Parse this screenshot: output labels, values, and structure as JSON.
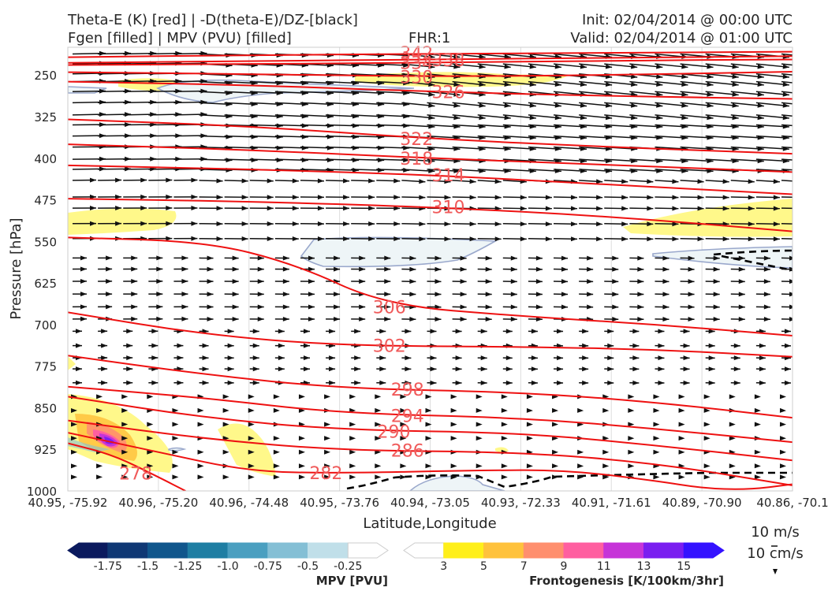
{
  "header": {
    "title_left_1": "Theta-E (K) [red] | -D(theta-E)/DZ-[black]",
    "title_left_2": "Fgen [filled] | MPV (PVU) [filled]",
    "fhr": "FHR:1",
    "init": "Init: 02/04/2014 @ 00:00 UTC",
    "valid": "Valid: 02/04/2014 @ 01:00 UTC"
  },
  "colors": {
    "theta": "#ee1111",
    "theta_label": "#f05a5a",
    "arrows": "#111111",
    "mpv_line": "#9aa8cc",
    "mpv_fill": "#eef5f7",
    "fgen_fill": "#fff88a",
    "dashed": "#000000"
  },
  "chart_data": {
    "type": "cross-section",
    "xlabel": "Latitude,Longitude",
    "ylabel": "Pressure [hPa]",
    "ylim": [
      1000,
      200
    ],
    "xlim": [
      0,
      8
    ],
    "x_tick_labels": [
      "40.95, -75.92",
      "40.96, -75.20",
      "40.96, -74.48",
      "40.95, -73.76",
      "40.94, -73.05",
      "40.93, -72.33",
      "40.91, -71.61",
      "40.89, -70.90",
      "40.86, -70.1"
    ],
    "y_ticks": [
      250,
      325,
      400,
      475,
      550,
      625,
      700,
      775,
      850,
      925,
      1000
    ],
    "theta_e_contours": [
      {
        "label": "342",
        "label_x": 3.85,
        "label_p": 210,
        "points": [
          [
            0,
            218
          ],
          [
            2,
            214
          ],
          [
            4,
            212
          ],
          [
            6,
            210
          ],
          [
            8,
            208
          ]
        ]
      },
      {
        "label": "338",
        "label_x": 4.2,
        "label_p": 223,
        "points": [
          [
            0,
            228
          ],
          [
            2,
            225
          ],
          [
            4,
            222
          ],
          [
            6,
            219
          ],
          [
            8,
            216
          ]
        ]
      },
      {
        "label": "334",
        "label_x": 3.85,
        "label_p": 228,
        "points": [
          [
            0,
            232
          ],
          [
            2,
            230
          ],
          [
            4,
            228
          ],
          [
            6,
            224
          ],
          [
            8,
            222
          ]
        ]
      },
      {
        "label": "330",
        "label_x": 3.85,
        "label_p": 253,
        "points": [
          [
            0,
            245
          ],
          [
            2,
            248
          ],
          [
            4,
            253
          ],
          [
            6,
            250
          ],
          [
            8,
            244
          ]
        ]
      },
      {
        "label": "326",
        "label_x": 4.2,
        "label_p": 280,
        "points": [
          [
            0,
            262
          ],
          [
            2,
            268
          ],
          [
            4,
            280
          ],
          [
            6,
            288
          ],
          [
            8,
            293
          ]
        ]
      },
      {
        "label": "322",
        "label_x": 3.85,
        "label_p": 365,
        "points": [
          [
            0,
            330
          ],
          [
            2,
            342
          ],
          [
            4,
            365
          ],
          [
            6,
            380
          ],
          [
            8,
            392
          ]
        ]
      },
      {
        "label": "318",
        "label_x": 3.85,
        "label_p": 400,
        "points": [
          [
            0,
            375
          ],
          [
            2,
            385
          ],
          [
            4,
            400
          ],
          [
            6,
            412
          ],
          [
            8,
            425
          ]
        ]
      },
      {
        "label": "314",
        "label_x": 4.2,
        "label_p": 430,
        "points": [
          [
            0,
            413
          ],
          [
            2,
            420
          ],
          [
            4,
            430
          ],
          [
            6,
            448
          ],
          [
            8,
            465
          ]
        ]
      },
      {
        "label": "310",
        "label_x": 4.2,
        "label_p": 488,
        "points": [
          [
            0,
            473
          ],
          [
            2,
            478
          ],
          [
            4,
            488
          ],
          [
            6,
            505
          ],
          [
            8,
            532
          ]
        ]
      },
      {
        "label": "306",
        "label_x": 3.55,
        "label_p": 668,
        "points": [
          [
            0,
            543
          ],
          [
            1.5,
            550
          ],
          [
            2.5,
            590
          ],
          [
            3.5,
            665
          ],
          [
            5,
            685
          ],
          [
            6.5,
            700
          ],
          [
            8,
            720
          ]
        ]
      },
      {
        "label": "302",
        "label_x": 3.55,
        "label_p": 738,
        "points": [
          [
            0,
            678
          ],
          [
            1.5,
            718
          ],
          [
            3,
            738
          ],
          [
            5,
            740
          ],
          [
            6.5,
            745
          ],
          [
            8,
            758
          ]
        ]
      },
      {
        "label": "298",
        "label_x": 3.75,
        "label_p": 817,
        "points": [
          [
            0,
            756
          ],
          [
            1.5,
            790
          ],
          [
            3,
            815
          ],
          [
            5,
            822
          ],
          [
            6.5,
            840
          ],
          [
            8,
            868
          ]
        ]
      },
      {
        "label": "294",
        "label_x": 3.75,
        "label_p": 864,
        "points": [
          [
            0,
            812
          ],
          [
            1.5,
            832
          ],
          [
            3,
            860
          ],
          [
            5,
            868
          ],
          [
            6.5,
            888
          ],
          [
            8,
            912
          ]
        ]
      },
      {
        "label": "290",
        "label_x": 3.6,
        "label_p": 893,
        "points": [
          [
            0,
            830
          ],
          [
            1.5,
            868
          ],
          [
            3,
            890
          ],
          [
            5,
            895
          ],
          [
            6.5,
            918
          ],
          [
            8,
            945
          ]
        ]
      },
      {
        "label": "286",
        "label_x": 3.75,
        "label_p": 927,
        "points": [
          [
            0,
            873
          ],
          [
            1.5,
            906
          ],
          [
            3,
            927
          ],
          [
            5,
            930
          ],
          [
            6.5,
            950
          ],
          [
            8,
            990
          ]
        ]
      },
      {
        "label": "282",
        "label_x": 2.85,
        "label_p": 967,
        "points": [
          [
            0,
            895
          ],
          [
            1,
            930
          ],
          [
            2,
            965
          ],
          [
            3,
            968
          ],
          [
            4.5,
            963
          ],
          [
            5.5,
            962
          ],
          [
            6.5,
            982
          ],
          [
            7,
            995
          ],
          [
            7.5,
            998
          ],
          [
            8,
            988
          ]
        ]
      },
      {
        "label": "278",
        "label_x": 0.75,
        "label_p": 968,
        "points": [
          [
            0,
            914
          ],
          [
            0.5,
            935
          ],
          [
            1,
            975
          ],
          [
            1.3,
            1000
          ]
        ]
      }
    ],
    "mpv_colorbar": {
      "label": "MPV [PVU]",
      "ticks": [
        "-1.75",
        "-1.5",
        "-1.25",
        "-1.0",
        "-0.75",
        "-0.5",
        "-0.25"
      ],
      "colors": [
        "#0b1a5e",
        "#0f3874",
        "#10568c",
        "#1e7ea3",
        "#4a9fc0",
        "#84bfd5",
        "#c0dfe9",
        "#ffffff"
      ]
    },
    "fgen_colorbar": {
      "label": "Frontogenesis [K/100km/3hr]",
      "ticks": [
        "3",
        "5",
        "7",
        "9",
        "11",
        "13",
        "15"
      ],
      "colors": [
        "#ffffff",
        "#ffef1a",
        "#ffc23c",
        "#ff8f6e",
        "#ff5fa0",
        "#c634d8",
        "#7a1ef0",
        "#3412ff"
      ]
    },
    "wind_key": [
      "10 m/s",
      "10 cm/s"
    ]
  }
}
